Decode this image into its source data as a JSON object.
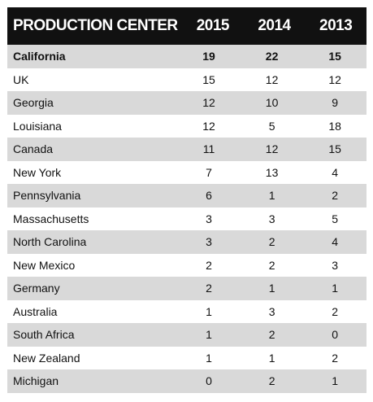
{
  "chart_data": {
    "type": "table",
    "columns": [
      "PRODUCTION CENTER",
      "2015",
      "2014",
      "2013"
    ],
    "rows": [
      {
        "center": "California",
        "2015": 19,
        "2014": 22,
        "2013": 15
      },
      {
        "center": "UK",
        "2015": 15,
        "2014": 12,
        "2013": 12
      },
      {
        "center": "Georgia",
        "2015": 12,
        "2014": 10,
        "2013": 9
      },
      {
        "center": "Louisiana",
        "2015": 12,
        "2014": 5,
        "2013": 18
      },
      {
        "center": "Canada",
        "2015": 11,
        "2014": 12,
        "2013": 15
      },
      {
        "center": "New York",
        "2015": 7,
        "2014": 13,
        "2013": 4
      },
      {
        "center": "Pennsylvania",
        "2015": 6,
        "2014": 1,
        "2013": 2
      },
      {
        "center": "Massachusetts",
        "2015": 3,
        "2014": 3,
        "2013": 5
      },
      {
        "center": "North Carolina",
        "2015": 3,
        "2014": 2,
        "2013": 4
      },
      {
        "center": "New Mexico",
        "2015": 2,
        "2014": 2,
        "2013": 3
      },
      {
        "center": "Germany",
        "2015": 2,
        "2014": 1,
        "2013": 1
      },
      {
        "center": "Australia",
        "2015": 1,
        "2014": 3,
        "2013": 2
      },
      {
        "center": "South Africa",
        "2015": 1,
        "2014": 2,
        "2013": 0
      },
      {
        "center": "New Zealand",
        "2015": 1,
        "2014": 1,
        "2013": 2
      },
      {
        "center": "Michigan",
        "2015": 0,
        "2014": 2,
        "2013": 1
      }
    ],
    "bold_rows": [
      "California"
    ],
    "header_bg": "#111111",
    "header_fg": "#ffffff",
    "stripe_color": "#d9d9d9"
  }
}
